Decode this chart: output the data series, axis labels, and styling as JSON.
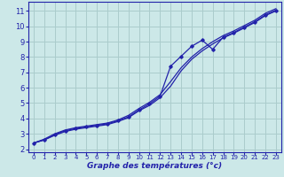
{
  "title": "Graphe des températures (°c)",
  "bg_color": "#cce8e8",
  "grid_color": "#aacccc",
  "line_color": "#2222aa",
  "xlim": [
    -0.5,
    23.5
  ],
  "ylim": [
    1.8,
    11.6
  ],
  "x_ticks": [
    0,
    1,
    2,
    3,
    4,
    5,
    6,
    7,
    8,
    9,
    10,
    11,
    12,
    13,
    14,
    15,
    16,
    17,
    18,
    19,
    20,
    21,
    22,
    23
  ],
  "y_ticks": [
    2,
    3,
    4,
    5,
    6,
    7,
    8,
    9,
    10,
    11
  ],
  "line1_y": [
    2.4,
    2.65,
    3.0,
    3.25,
    3.4,
    3.5,
    3.6,
    3.7,
    3.9,
    4.2,
    4.65,
    5.05,
    5.55,
    6.4,
    7.3,
    8.0,
    8.55,
    9.0,
    9.4,
    9.7,
    10.05,
    10.4,
    10.85,
    11.15
  ],
  "line2_y": [
    2.4,
    2.6,
    2.95,
    3.2,
    3.35,
    3.45,
    3.55,
    3.65,
    3.85,
    4.1,
    4.55,
    4.95,
    5.45,
    7.4,
    8.05,
    8.7,
    9.1,
    8.5,
    9.3,
    9.6,
    9.95,
    10.3,
    10.75,
    11.05
  ],
  "line3_y": [
    2.4,
    2.6,
    2.9,
    3.15,
    3.3,
    3.4,
    3.5,
    3.6,
    3.8,
    4.05,
    4.5,
    4.85,
    5.35,
    6.1,
    7.1,
    7.85,
    8.4,
    8.85,
    9.25,
    9.55,
    9.9,
    10.25,
    10.7,
    11.0
  ]
}
